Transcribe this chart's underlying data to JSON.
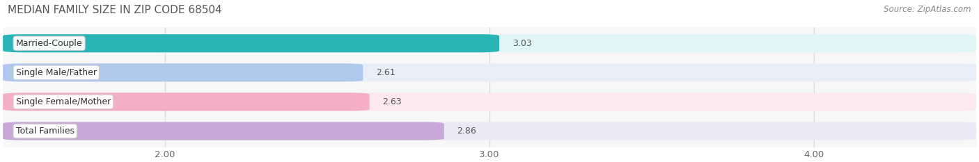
{
  "title": "MEDIAN FAMILY SIZE IN ZIP CODE 68504",
  "source": "Source: ZipAtlas.com",
  "categories": [
    "Married-Couple",
    "Single Male/Father",
    "Single Female/Mother",
    "Total Families"
  ],
  "values": [
    3.03,
    2.61,
    2.63,
    2.86
  ],
  "bar_colors": [
    "#29b5b5",
    "#b0c8ec",
    "#f5aec8",
    "#c8a8d8"
  ],
  "bar_bg_colors": [
    "#e0f5f5",
    "#e8eef8",
    "#fce8f0",
    "#ede8f5"
  ],
  "xlim_left": 1.5,
  "xlim_right": 4.5,
  "xticks": [
    2.0,
    3.0,
    4.0
  ],
  "xtick_labels": [
    "2.00",
    "3.00",
    "4.00"
  ],
  "bar_height": 0.62,
  "background_color": "#ffffff",
  "plot_background_color": "#f7f7f7",
  "title_color": "#555555",
  "title_fontsize": 11,
  "tick_fontsize": 9.5,
  "label_fontsize": 9,
  "value_fontsize": 9,
  "source_fontsize": 8.5,
  "grid_color": "#dddddd"
}
